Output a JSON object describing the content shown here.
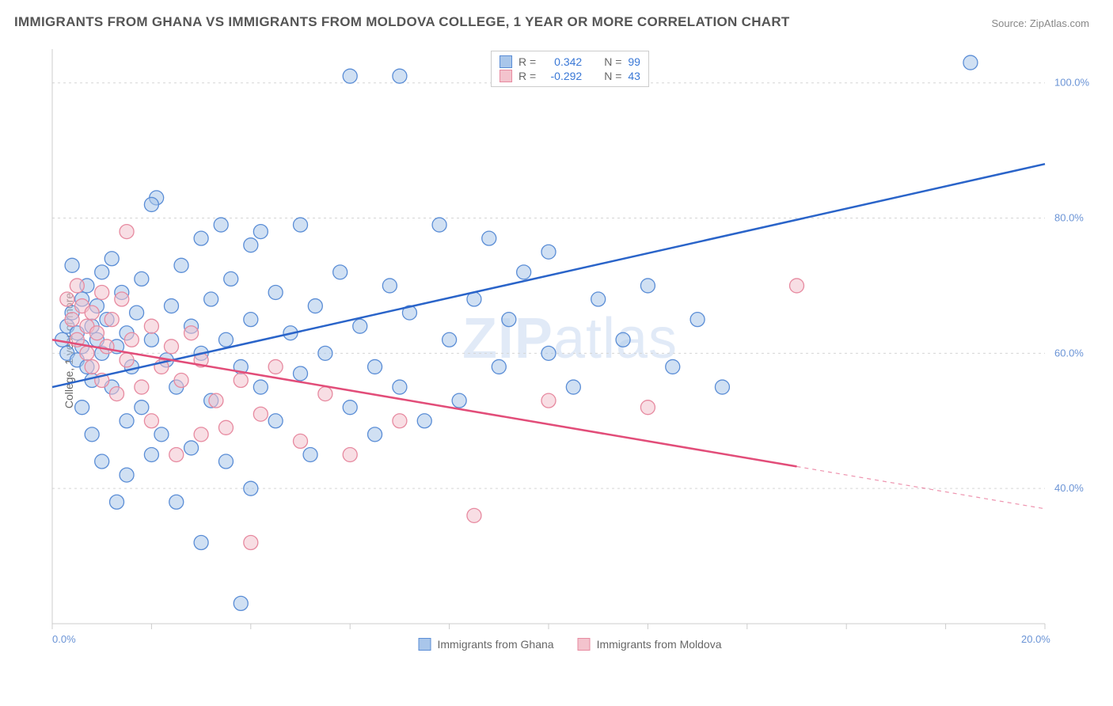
{
  "title": "IMMIGRANTS FROM GHANA VS IMMIGRANTS FROM MOLDOVA COLLEGE, 1 YEAR OR MORE CORRELATION CHART",
  "source": "Source: ZipAtlas.com",
  "ylabel": "College, 1 year or more",
  "watermark_prefix": "ZIP",
  "watermark_suffix": "atlas",
  "chart": {
    "type": "scatter",
    "background_color": "#ffffff",
    "grid_color": "#d5d5d5",
    "axis_line_color": "#cccccc",
    "axis_label_color": "#6b94d6",
    "xlim": [
      0,
      20
    ],
    "ylim": [
      20,
      105
    ],
    "ytick_values": [
      40,
      60,
      80,
      100
    ],
    "ytick_labels": [
      "40.0%",
      "60.0%",
      "80.0%",
      "100.0%"
    ],
    "xtick_values": [
      0,
      2,
      4,
      6,
      8,
      10,
      12,
      14,
      16,
      18,
      20
    ],
    "xtick_labels": [
      "0.0%",
      "",
      "",
      "",
      "",
      "",
      "",
      "",
      "",
      "",
      "20.0%"
    ],
    "marker_radius": 9,
    "marker_opacity": 0.55,
    "line_width": 2.5
  },
  "series": [
    {
      "name": "Immigrants from Ghana",
      "fill_color": "#a9c6ea",
      "stroke_color": "#5a8dd6",
      "line_color": "#2a64c9",
      "r_label": "R =",
      "r_value": "0.342",
      "n_label": "N =",
      "n_value": "99",
      "trend": {
        "x1": 0,
        "y1": 55,
        "x2": 20,
        "y2": 88,
        "dashed_from_x": null
      },
      "points": [
        [
          0.2,
          62
        ],
        [
          0.3,
          64
        ],
        [
          0.3,
          60
        ],
        [
          0.4,
          66
        ],
        [
          0.5,
          63
        ],
        [
          0.5,
          59
        ],
        [
          0.6,
          68
        ],
        [
          0.6,
          61
        ],
        [
          0.7,
          70
        ],
        [
          0.7,
          58
        ],
        [
          0.8,
          64
        ],
        [
          0.8,
          56
        ],
        [
          0.9,
          62
        ],
        [
          0.9,
          67
        ],
        [
          1.0,
          72
        ],
        [
          1.0,
          60
        ],
        [
          1.1,
          65
        ],
        [
          1.2,
          55
        ],
        [
          1.2,
          74
        ],
        [
          1.3,
          61
        ],
        [
          1.4,
          69
        ],
        [
          1.5,
          50
        ],
        [
          1.5,
          63
        ],
        [
          1.6,
          58
        ],
        [
          1.7,
          66
        ],
        [
          1.8,
          52
        ],
        [
          1.8,
          71
        ],
        [
          2.0,
          45
        ],
        [
          2.0,
          62
        ],
        [
          2.1,
          83
        ],
        [
          2.2,
          48
        ],
        [
          2.3,
          59
        ],
        [
          2.4,
          67
        ],
        [
          2.5,
          38
        ],
        [
          2.5,
          55
        ],
        [
          2.6,
          73
        ],
        [
          2.8,
          64
        ],
        [
          2.8,
          46
        ],
        [
          3.0,
          60
        ],
        [
          3.0,
          77
        ],
        [
          3.2,
          53
        ],
        [
          3.2,
          68
        ],
        [
          3.4,
          79
        ],
        [
          3.5,
          44
        ],
        [
          3.5,
          62
        ],
        [
          3.6,
          71
        ],
        [
          3.8,
          58
        ],
        [
          3.8,
          23
        ],
        [
          4.0,
          65
        ],
        [
          4.0,
          76
        ],
        [
          4.2,
          55
        ],
        [
          4.2,
          78
        ],
        [
          4.5,
          50
        ],
        [
          4.5,
          69
        ],
        [
          4.8,
          63
        ],
        [
          5.0,
          57
        ],
        [
          5.0,
          79
        ],
        [
          5.2,
          45
        ],
        [
          5.3,
          67
        ],
        [
          5.5,
          60
        ],
        [
          5.8,
          72
        ],
        [
          6.0,
          52
        ],
        [
          6.0,
          101
        ],
        [
          6.2,
          64
        ],
        [
          6.5,
          58
        ],
        [
          6.8,
          70
        ],
        [
          7.0,
          101
        ],
        [
          7.0,
          55
        ],
        [
          7.2,
          66
        ],
        [
          7.5,
          50
        ],
        [
          7.8,
          79
        ],
        [
          8.0,
          62
        ],
        [
          8.2,
          53
        ],
        [
          8.5,
          68
        ],
        [
          8.8,
          77
        ],
        [
          9.0,
          58
        ],
        [
          9.2,
          65
        ],
        [
          9.5,
          72
        ],
        [
          10.0,
          60
        ],
        [
          10.0,
          75
        ],
        [
          10.5,
          55
        ],
        [
          10.5,
          101
        ],
        [
          11.0,
          68
        ],
        [
          11.5,
          62
        ],
        [
          12.0,
          70
        ],
        [
          12.5,
          58
        ],
        [
          13.0,
          65
        ],
        [
          13.5,
          55
        ],
        [
          18.5,
          103
        ],
        [
          3.0,
          32
        ],
        [
          1.5,
          42
        ],
        [
          2.0,
          82
        ],
        [
          4.0,
          40
        ],
        [
          6.5,
          48
        ],
        [
          0.4,
          73
        ],
        [
          0.6,
          52
        ],
        [
          0.8,
          48
        ],
        [
          1.0,
          44
        ],
        [
          1.3,
          38
        ]
      ]
    },
    {
      "name": "Immigrants from Moldova",
      "fill_color": "#f3c3cd",
      "stroke_color": "#e78aa0",
      "line_color": "#e24d79",
      "r_label": "R =",
      "r_value": "-0.292",
      "n_label": "N =",
      "n_value": "43",
      "trend": {
        "x1": 0,
        "y1": 62,
        "x2": 20,
        "y2": 37,
        "dashed_from_x": 15
      },
      "points": [
        [
          0.3,
          68
        ],
        [
          0.4,
          65
        ],
        [
          0.5,
          70
        ],
        [
          0.5,
          62
        ],
        [
          0.6,
          67
        ],
        [
          0.7,
          64
        ],
        [
          0.7,
          60
        ],
        [
          0.8,
          66
        ],
        [
          0.8,
          58
        ],
        [
          0.9,
          63
        ],
        [
          1.0,
          69
        ],
        [
          1.0,
          56
        ],
        [
          1.1,
          61
        ],
        [
          1.2,
          65
        ],
        [
          1.3,
          54
        ],
        [
          1.4,
          68
        ],
        [
          1.5,
          78
        ],
        [
          1.5,
          59
        ],
        [
          1.6,
          62
        ],
        [
          1.8,
          55
        ],
        [
          2.0,
          64
        ],
        [
          2.0,
          50
        ],
        [
          2.2,
          58
        ],
        [
          2.4,
          61
        ],
        [
          2.5,
          45
        ],
        [
          2.6,
          56
        ],
        [
          2.8,
          63
        ],
        [
          3.0,
          48
        ],
        [
          3.0,
          59
        ],
        [
          3.3,
          53
        ],
        [
          3.5,
          49
        ],
        [
          3.8,
          56
        ],
        [
          4.0,
          32
        ],
        [
          4.2,
          51
        ],
        [
          4.5,
          58
        ],
        [
          5.0,
          47
        ],
        [
          5.5,
          54
        ],
        [
          6.0,
          45
        ],
        [
          7.0,
          50
        ],
        [
          8.5,
          36
        ],
        [
          10.0,
          53
        ],
        [
          12.0,
          52
        ],
        [
          15.0,
          70
        ]
      ]
    }
  ],
  "top_legend": {
    "rows": [
      {
        "series_idx": 0
      },
      {
        "series_idx": 1
      }
    ]
  }
}
